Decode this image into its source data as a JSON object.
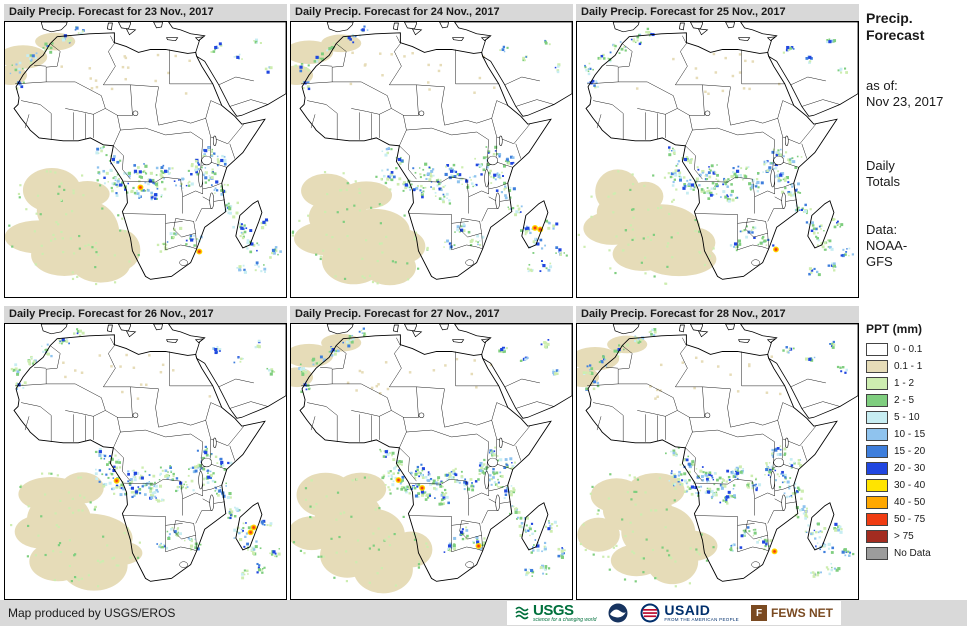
{
  "panels": [
    {
      "title": "Daily Precip. Forecast for 23 Nov., 2017",
      "seed": 101
    },
    {
      "title": "Daily Precip. Forecast for 24 Nov., 2017",
      "seed": 202
    },
    {
      "title": "Daily Precip. Forecast for 25 Nov., 2017",
      "seed": 303
    },
    {
      "title": "Daily Precip. Forecast for 26 Nov., 2017",
      "seed": 404
    },
    {
      "title": "Daily Precip. Forecast for 27 Nov., 2017",
      "seed": 505
    },
    {
      "title": "Daily Precip. Forecast for 28 Nov., 2017",
      "seed": 606
    }
  ],
  "sidebar": {
    "title_line1": "Precip.",
    "title_line2": "Forecast",
    "as_of_label": "as of:",
    "as_of_date": "Nov 23, 2017",
    "totals_line1": "Daily",
    "totals_line2": "Totals",
    "data_label": "Data:",
    "data_line1": "NOAA-",
    "data_line2": "GFS"
  },
  "legend": {
    "title": "PPT (mm)",
    "entries": [
      {
        "label": "0 - 0.1",
        "color": "#FFFFFF"
      },
      {
        "label": "0.1 - 1",
        "color": "#E6DCB8"
      },
      {
        "label": "1 - 2",
        "color": "#CDEDB0"
      },
      {
        "label": "2 - 5",
        "color": "#7FCE7F"
      },
      {
        "label": "5 - 10",
        "color": "#C7EDF2"
      },
      {
        "label": "10 - 15",
        "color": "#8FC3EE"
      },
      {
        "label": "15 - 20",
        "color": "#3E7EDC"
      },
      {
        "label": "20 - 30",
        "color": "#2046E0"
      },
      {
        "label": "30 - 40",
        "color": "#FFE400"
      },
      {
        "label": "40 - 50",
        "color": "#FFA800"
      },
      {
        "label": "50 - 75",
        "color": "#F03C12"
      },
      {
        "label": "> 75",
        "color": "#A32C20"
      },
      {
        "label": "No Data",
        "color": "#9C9C9C"
      }
    ]
  },
  "footer": {
    "credit": "Map produced by USGS/EROS"
  },
  "logos": {
    "usgs": {
      "name": "USGS",
      "tagline": "science for a changing world"
    },
    "noaa": {
      "name": "NOAA"
    },
    "usaid": {
      "name": "USAID",
      "tagline": "FROM THE AMERICAN PEOPLE"
    },
    "fewsnet": {
      "name": "FEWS NET",
      "icon_letter": "F"
    }
  }
}
